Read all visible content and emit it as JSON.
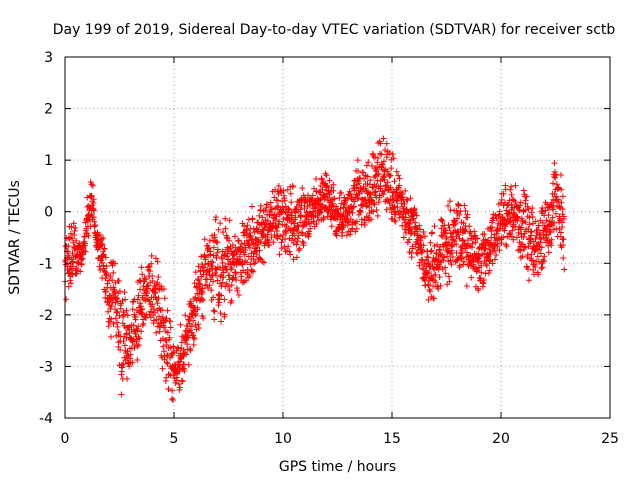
{
  "chart_data": {
    "type": "scatter",
    "title": "Day 199 of 2019, Sidereal Day-to-day VTEC variation (SDTVAR) for receiver sctb",
    "xlabel": "GPS time / hours",
    "ylabel": "SDTVAR / TECUs",
    "xlim": [
      0,
      25
    ],
    "ylim": [
      -4,
      3
    ],
    "xticks": [
      0,
      5,
      10,
      15,
      20,
      25
    ],
    "xtick_labels": [
      "0",
      "5",
      "10",
      "15",
      "20",
      "25"
    ],
    "yticks": [
      -4,
      -3,
      -2,
      -1,
      0,
      1,
      2,
      3
    ],
    "ytick_labels": [
      "-4",
      "-3",
      "-2",
      "-1",
      "0",
      "1",
      "2",
      "3"
    ],
    "grid": true,
    "marker": "+",
    "color": "#ff0000",
    "series": [
      {
        "name": "SDTVAR",
        "envelope": [
          {
            "x": 0.0,
            "y": -0.9,
            "spread": 0.6
          },
          {
            "x": 0.2,
            "y": -1.0,
            "spread": 0.7
          },
          {
            "x": 0.4,
            "y": -0.8,
            "spread": 0.5
          },
          {
            "x": 0.8,
            "y": -0.9,
            "spread": 0.2
          },
          {
            "x": 1.2,
            "y": 0.4,
            "spread": 0.5
          },
          {
            "x": 1.4,
            "y": -0.5,
            "spread": 0.3
          },
          {
            "x": 1.8,
            "y": -1.0,
            "spread": 0.4
          },
          {
            "x": 2.0,
            "y": -1.8,
            "spread": 0.6
          },
          {
            "x": 2.3,
            "y": -1.6,
            "spread": 0.5
          },
          {
            "x": 2.6,
            "y": -2.5,
            "spread": 0.9
          },
          {
            "x": 3.0,
            "y": -2.6,
            "spread": 0.6
          },
          {
            "x": 3.4,
            "y": -1.8,
            "spread": 0.7
          },
          {
            "x": 3.8,
            "y": -1.4,
            "spread": 0.5
          },
          {
            "x": 4.2,
            "y": -1.6,
            "spread": 0.6
          },
          {
            "x": 4.6,
            "y": -2.5,
            "spread": 0.8
          },
          {
            "x": 5.0,
            "y": -3.0,
            "spread": 0.5
          },
          {
            "x": 5.4,
            "y": -2.8,
            "spread": 0.5
          },
          {
            "x": 5.8,
            "y": -2.2,
            "spread": 0.5
          },
          {
            "x": 6.2,
            "y": -1.5,
            "spread": 0.6
          },
          {
            "x": 6.6,
            "y": -1.0,
            "spread": 0.7
          },
          {
            "x": 7.0,
            "y": -1.2,
            "spread": 0.8
          },
          {
            "x": 7.5,
            "y": -1.0,
            "spread": 0.7
          },
          {
            "x": 8.0,
            "y": -0.9,
            "spread": 0.6
          },
          {
            "x": 8.5,
            "y": -0.6,
            "spread": 0.5
          },
          {
            "x": 9.0,
            "y": -0.5,
            "spread": 0.5
          },
          {
            "x": 9.5,
            "y": -0.1,
            "spread": 0.5
          },
          {
            "x": 10.0,
            "y": -0.2,
            "spread": 0.6
          },
          {
            "x": 10.5,
            "y": -0.3,
            "spread": 0.6
          },
          {
            "x": 11.0,
            "y": -0.2,
            "spread": 0.5
          },
          {
            "x": 11.5,
            "y": 0.1,
            "spread": 0.4
          },
          {
            "x": 12.0,
            "y": 0.3,
            "spread": 0.4
          },
          {
            "x": 12.5,
            "y": -0.1,
            "spread": 0.4
          },
          {
            "x": 13.0,
            "y": 0.0,
            "spread": 0.4
          },
          {
            "x": 13.5,
            "y": 0.4,
            "spread": 0.6
          },
          {
            "x": 14.0,
            "y": 0.3,
            "spread": 0.6
          },
          {
            "x": 14.5,
            "y": 0.9,
            "spread": 0.6
          },
          {
            "x": 14.9,
            "y": 0.5,
            "spread": 0.6
          },
          {
            "x": 15.3,
            "y": 0.2,
            "spread": 0.5
          },
          {
            "x": 15.8,
            "y": -0.3,
            "spread": 0.5
          },
          {
            "x": 16.2,
            "y": -0.6,
            "spread": 0.5
          },
          {
            "x": 16.6,
            "y": -1.2,
            "spread": 0.5
          },
          {
            "x": 17.0,
            "y": -1.0,
            "spread": 0.6
          },
          {
            "x": 17.5,
            "y": -0.6,
            "spread": 0.6
          },
          {
            "x": 18.0,
            "y": -0.5,
            "spread": 0.6
          },
          {
            "x": 18.5,
            "y": -0.7,
            "spread": 0.6
          },
          {
            "x": 19.0,
            "y": -1.0,
            "spread": 0.5
          },
          {
            "x": 19.5,
            "y": -0.7,
            "spread": 0.5
          },
          {
            "x": 20.0,
            "y": -0.2,
            "spread": 0.5
          },
          {
            "x": 20.5,
            "y": 0.0,
            "spread": 0.5
          },
          {
            "x": 21.0,
            "y": -0.3,
            "spread": 0.6
          },
          {
            "x": 21.5,
            "y": -0.8,
            "spread": 0.6
          },
          {
            "x": 22.0,
            "y": -0.4,
            "spread": 0.5
          },
          {
            "x": 22.5,
            "y": 0.3,
            "spread": 0.6
          },
          {
            "x": 22.9,
            "y": -0.3,
            "spread": 0.6
          }
        ]
      }
    ]
  }
}
